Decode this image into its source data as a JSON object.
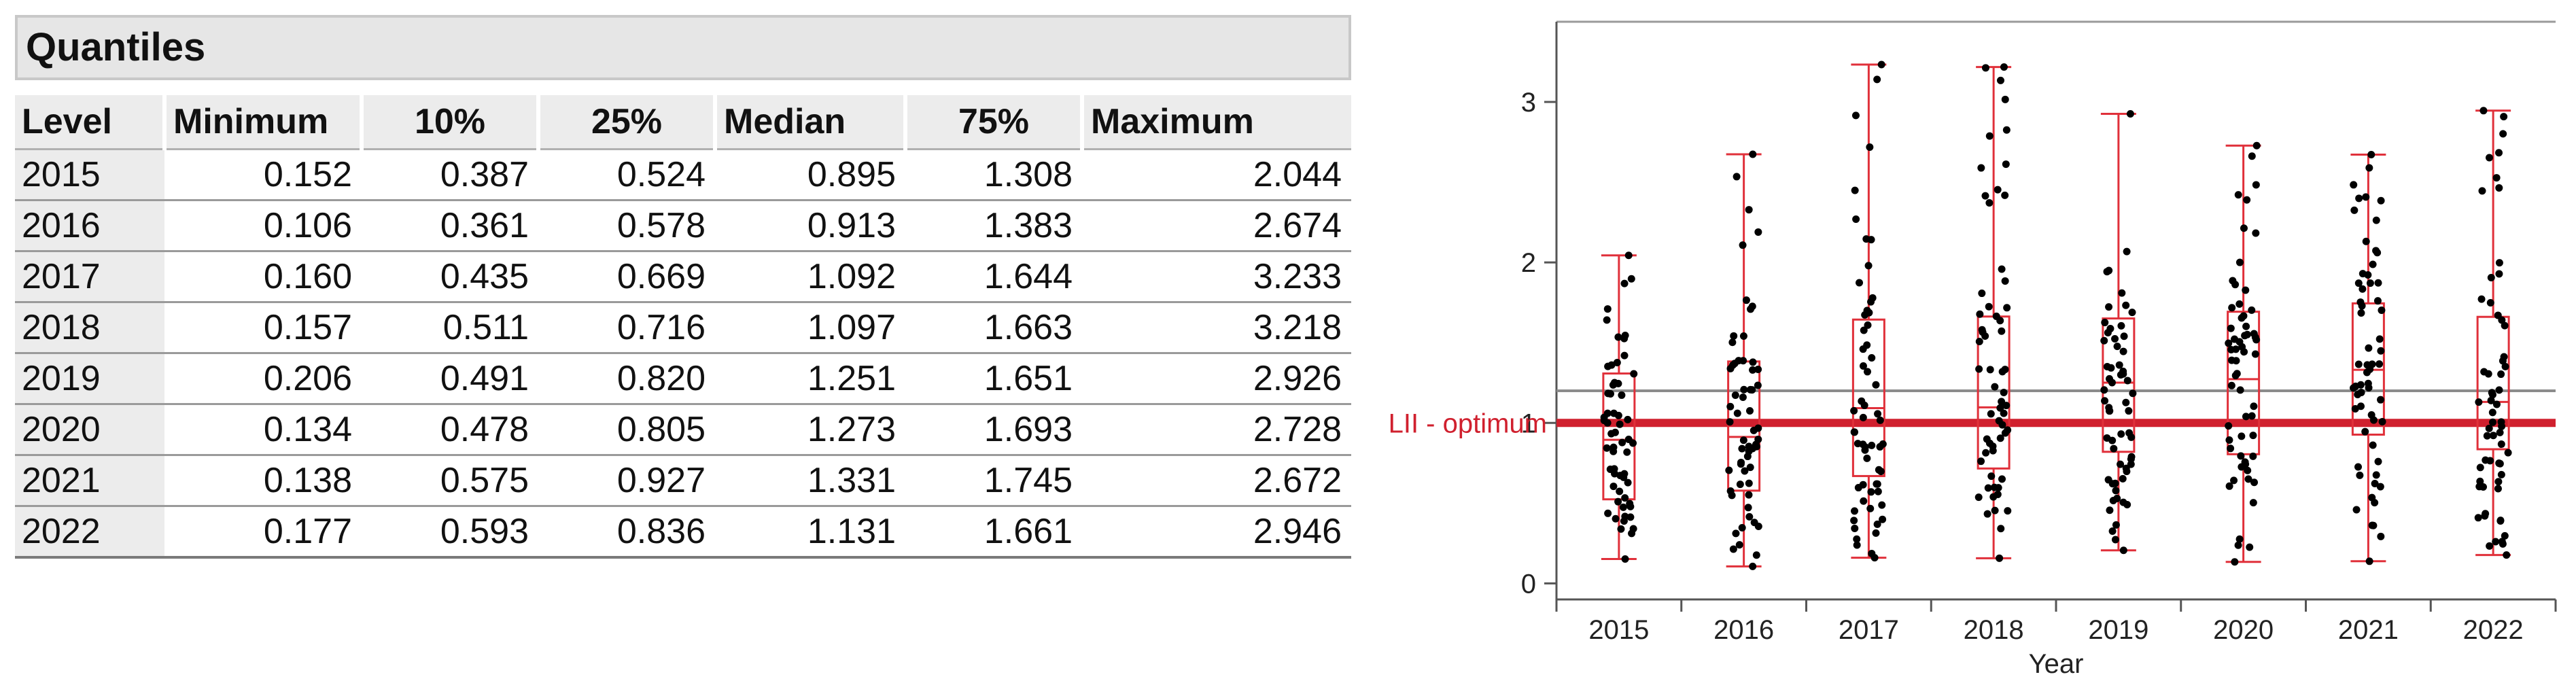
{
  "quantiles": {
    "title": "Quantiles",
    "columns": [
      "Level",
      "Minimum",
      "10%",
      "25%",
      "Median",
      "75%",
      "Maximum"
    ],
    "rows": [
      [
        "2015",
        "0.152",
        "0.387",
        "0.524",
        "0.895",
        "1.308",
        "2.044"
      ],
      [
        "2016",
        "0.106",
        "0.361",
        "0.578",
        "0.913",
        "1.383",
        "2.674"
      ],
      [
        "2017",
        "0.160",
        "0.435",
        "0.669",
        "1.092",
        "1.644",
        "3.233"
      ],
      [
        "2018",
        "0.157",
        "0.511",
        "0.716",
        "1.097",
        "1.663",
        "3.218"
      ],
      [
        "2019",
        "0.206",
        "0.491",
        "0.820",
        "1.251",
        "1.651",
        "2.926"
      ],
      [
        "2020",
        "0.134",
        "0.478",
        "0.805",
        "1.273",
        "1.693",
        "2.728"
      ],
      [
        "2021",
        "0.138",
        "0.575",
        "0.927",
        "1.331",
        "1.745",
        "2.672"
      ],
      [
        "2022",
        "0.177",
        "0.593",
        "0.836",
        "1.131",
        "1.661",
        "2.946"
      ]
    ]
  },
  "chart_data": {
    "type": "box",
    "categories": [
      "2015",
      "2016",
      "2017",
      "2018",
      "2019",
      "2020",
      "2021",
      "2022"
    ],
    "xlabel": "Year",
    "ylabel": "",
    "ylim": [
      -0.1,
      3.5
    ],
    "yticks": [
      0,
      1,
      2,
      3
    ],
    "boxes": [
      {
        "min": 0.152,
        "q1": 0.524,
        "median": 0.895,
        "q3": 1.308,
        "max": 2.044
      },
      {
        "min": 0.106,
        "q1": 0.578,
        "median": 0.913,
        "q3": 1.383,
        "max": 2.674
      },
      {
        "min": 0.16,
        "q1": 0.669,
        "median": 1.092,
        "q3": 1.644,
        "max": 3.233
      },
      {
        "min": 0.157,
        "q1": 0.716,
        "median": 1.097,
        "q3": 1.663,
        "max": 3.218
      },
      {
        "min": 0.206,
        "q1": 0.82,
        "median": 1.251,
        "q3": 1.651,
        "max": 2.926
      },
      {
        "min": 0.134,
        "q1": 0.805,
        "median": 1.273,
        "q3": 1.693,
        "max": 2.728
      },
      {
        "min": 0.138,
        "q1": 0.927,
        "median": 1.331,
        "q3": 1.745,
        "max": 2.672
      },
      {
        "min": 0.177,
        "q1": 0.836,
        "median": 1.131,
        "q3": 1.661,
        "max": 2.946
      }
    ],
    "reference_lines": [
      {
        "label": "LII - optimum",
        "y": 1.0,
        "color": "#d0202e"
      },
      {
        "label": "",
        "y": 1.2,
        "color": "#8c8c8c"
      }
    ],
    "points_per_group": 60,
    "box_color": "#e0303a",
    "point_color": "#000000",
    "grid": false
  }
}
